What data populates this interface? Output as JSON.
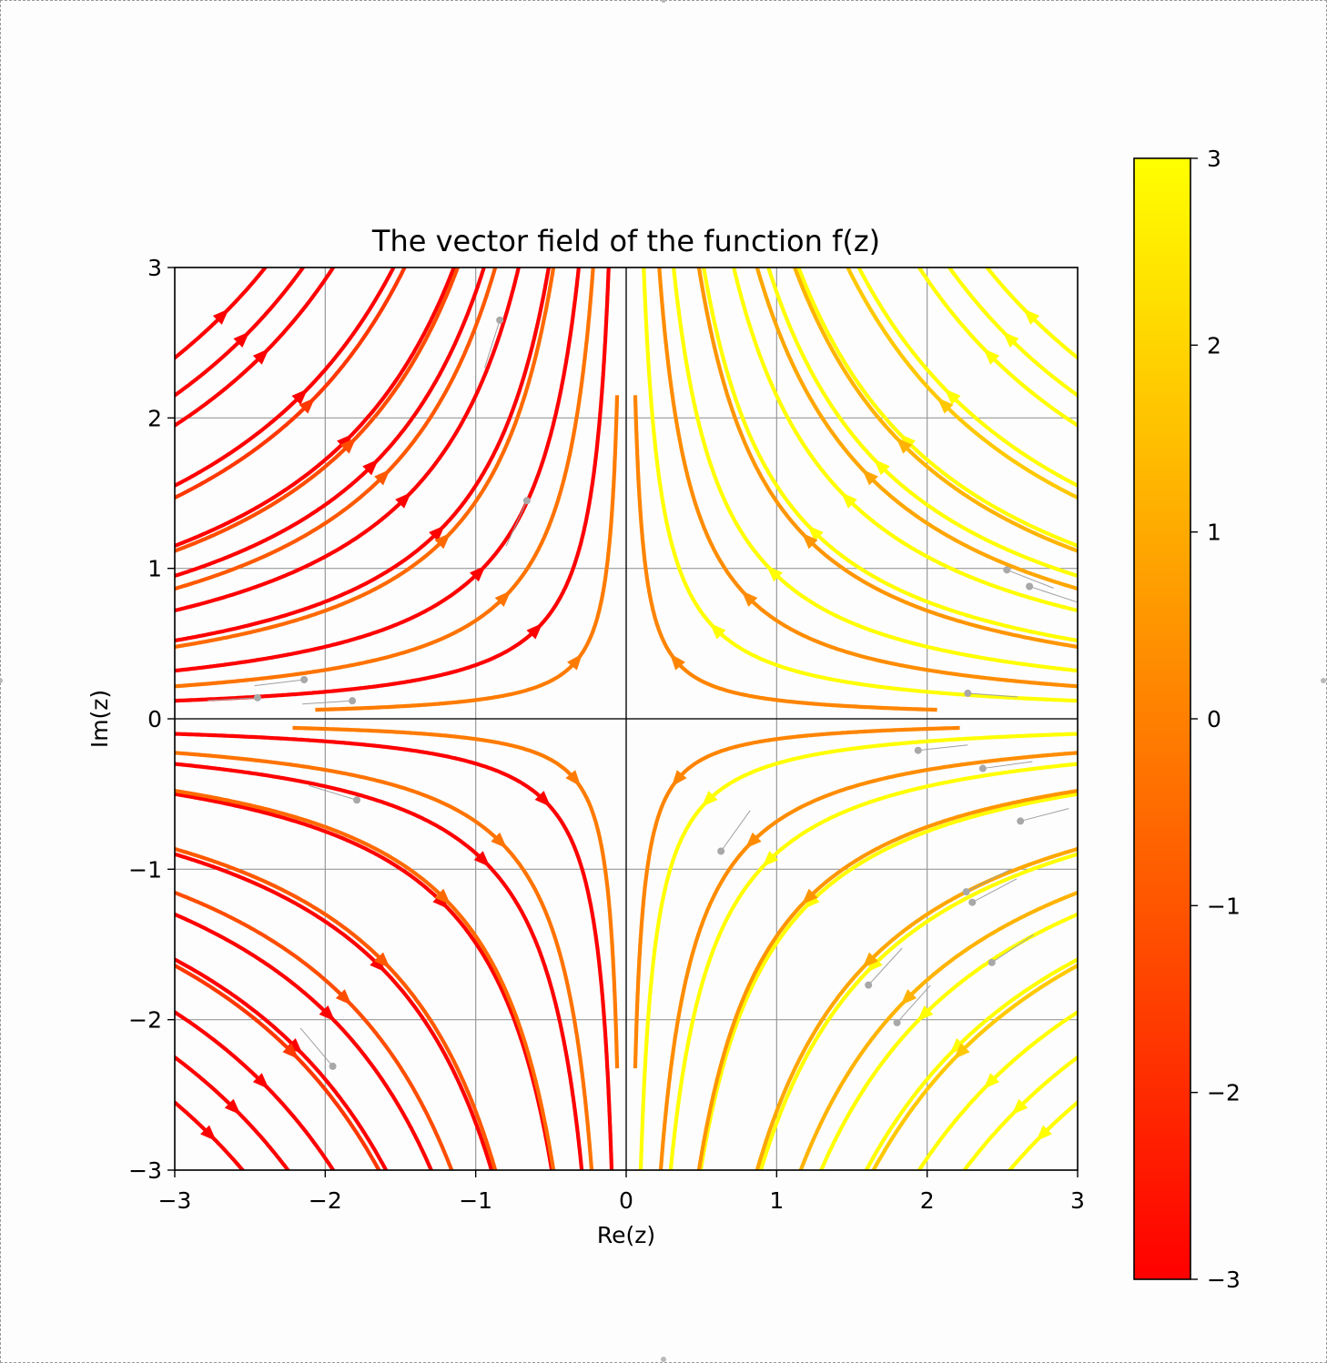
{
  "chart_data": {
    "type": "streamplot",
    "title": "The vector field of the function f(z)",
    "xlabel": "Re(z)",
    "ylabel": "Im(z)",
    "xlim": [
      -3,
      3
    ],
    "ylim": [
      -3,
      3
    ],
    "x_ticks": [
      -3,
      -2,
      -1,
      0,
      1,
      2,
      3
    ],
    "y_ticks": [
      -3,
      -2,
      -1,
      0,
      1,
      2,
      3
    ],
    "x_tick_labels": [
      "−3",
      "−2",
      "−1",
      "0",
      "1",
      "2",
      "3"
    ],
    "y_tick_labels": [
      "−3",
      "−2",
      "−1",
      "0",
      "1",
      "2",
      "3"
    ],
    "grid": true,
    "field": "-conj(1/z)",
    "colormap": "autumn",
    "color_by": "x",
    "colorbar": {
      "range": [
        -3,
        3
      ],
      "ticks": [
        -3,
        -2,
        -1,
        0,
        1,
        2,
        3
      ],
      "tick_labels": [
        "−3",
        "−2",
        "−1",
        "0",
        "1",
        "2",
        "3"
      ],
      "colors": [
        "#ff0000",
        "#ffff00"
      ]
    },
    "streamline_color": "#ff7f00",
    "stream_seeds": [
      [
        -3,
        2.4
      ],
      [
        -3,
        2.15
      ],
      [
        -3,
        1.95
      ],
      [
        -3,
        1.55
      ],
      [
        -3,
        1.15
      ],
      [
        -3,
        0.95
      ],
      [
        -3,
        0.72
      ],
      [
        -3,
        0.52
      ],
      [
        -3,
        0.32
      ],
      [
        -3,
        0.12
      ],
      [
        -1.7,
        2.6
      ],
      [
        -1.2,
        2.8
      ],
      [
        -0.9,
        2.9
      ],
      [
        -0.5,
        2.9
      ],
      [
        -0.3,
        2.2
      ],
      [
        -0.1,
        1.3
      ],
      [
        -3,
        -0.1
      ],
      [
        -3,
        -0.3
      ],
      [
        -3,
        -0.5
      ],
      [
        -3,
        -0.9
      ],
      [
        -3,
        -1.3
      ],
      [
        -3,
        -1.6
      ],
      [
        -3,
        -1.95
      ],
      [
        -3,
        -2.25
      ],
      [
        -3,
        -2.55
      ],
      [
        -1.7,
        -2.9
      ],
      [
        -1.2,
        -2.9
      ],
      [
        -0.9,
        -2.9
      ],
      [
        -0.5,
        -2.9
      ],
      [
        -0.3,
        -2.3
      ],
      [
        -0.1,
        -1.4
      ],
      [
        3,
        2.4
      ],
      [
        3,
        2.15
      ],
      [
        3,
        1.95
      ],
      [
        3,
        1.55
      ],
      [
        3,
        1.15
      ],
      [
        3,
        0.95
      ],
      [
        3,
        0.72
      ],
      [
        3,
        0.52
      ],
      [
        3,
        0.32
      ],
      [
        3,
        0.12
      ],
      [
        1.7,
        2.6
      ],
      [
        1.2,
        2.8
      ],
      [
        0.9,
        2.9
      ],
      [
        0.5,
        2.9
      ],
      [
        0.3,
        2.2
      ],
      [
        0.1,
        1.3
      ],
      [
        3,
        -0.1
      ],
      [
        3,
        -0.3
      ],
      [
        3,
        -0.5
      ],
      [
        3,
        -0.9
      ],
      [
        3,
        -1.3
      ],
      [
        3,
        -1.6
      ],
      [
        3,
        -1.95
      ],
      [
        3,
        -2.25
      ],
      [
        3,
        -2.55
      ],
      [
        1.7,
        -2.9
      ],
      [
        1.2,
        -2.9
      ],
      [
        0.9,
        -2.9
      ],
      [
        0.5,
        -2.9
      ],
      [
        0.3,
        -2.3
      ],
      [
        0.1,
        -1.4
      ]
    ],
    "gray_markers": [
      [
        -2.45,
        0.14
      ],
      [
        -2.14,
        0.26
      ],
      [
        -1.82,
        0.12
      ],
      [
        -1.79,
        -0.54
      ],
      [
        -0.84,
        2.65
      ],
      [
        -0.66,
        1.45
      ],
      [
        -1.95,
        -2.31
      ],
      [
        2.27,
        0.17
      ],
      [
        2.53,
        0.99
      ],
      [
        2.68,
        0.88
      ],
      [
        1.94,
        -0.21
      ],
      [
        2.37,
        -0.33
      ],
      [
        2.62,
        -0.68
      ],
      [
        0.63,
        -0.88
      ],
      [
        2.26,
        -1.15
      ],
      [
        2.3,
        -1.22
      ],
      [
        2.43,
        -1.62
      ],
      [
        1.61,
        -1.77
      ],
      [
        1.8,
        -2.02
      ]
    ]
  }
}
